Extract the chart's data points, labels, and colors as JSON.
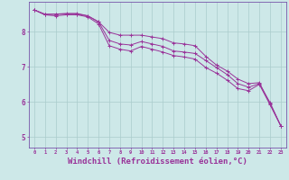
{
  "background_color": "#cde8e8",
  "grid_color": "#aacccc",
  "line_color": "#993399",
  "xlabel": "Windchill (Refroidissement éolien,°C)",
  "xlabel_fontsize": 6.5,
  "ylim": [
    4.7,
    8.85
  ],
  "xlim": [
    -0.5,
    23.5
  ],
  "series1_x": [
    0,
    1,
    2,
    3,
    4,
    5,
    6,
    7,
    8,
    9,
    10,
    11,
    12,
    13,
    14,
    15,
    16,
    17,
    18,
    19,
    20,
    21,
    22,
    23
  ],
  "series1_y": [
    8.62,
    8.5,
    8.5,
    8.52,
    8.52,
    8.45,
    8.28,
    7.98,
    7.9,
    7.9,
    7.9,
    7.85,
    7.8,
    7.68,
    7.65,
    7.6,
    7.3,
    7.05,
    6.88,
    6.65,
    6.52,
    6.55,
    5.95,
    5.32
  ],
  "series2_x": [
    0,
    1,
    2,
    3,
    4,
    5,
    6,
    7,
    8,
    9,
    10,
    11,
    12,
    13,
    14,
    15,
    16,
    17,
    18,
    19,
    20,
    21,
    22,
    23
  ],
  "series2_y": [
    8.62,
    8.48,
    8.5,
    8.5,
    8.5,
    8.45,
    8.28,
    7.75,
    7.65,
    7.62,
    7.72,
    7.65,
    7.58,
    7.45,
    7.42,
    7.38,
    7.18,
    6.98,
    6.78,
    6.52,
    6.42,
    6.52,
    5.98,
    5.32
  ],
  "series3_x": [
    0,
    1,
    2,
    3,
    4,
    5,
    6,
    7,
    8,
    9,
    10,
    11,
    12,
    13,
    14,
    15,
    16,
    17,
    18,
    19,
    20,
    21,
    22,
    23
  ],
  "series3_y": [
    8.62,
    8.48,
    8.45,
    8.48,
    8.48,
    8.42,
    8.22,
    7.6,
    7.5,
    7.45,
    7.58,
    7.5,
    7.42,
    7.32,
    7.28,
    7.22,
    6.98,
    6.82,
    6.62,
    6.38,
    6.32,
    6.5,
    5.92,
    5.32
  ]
}
